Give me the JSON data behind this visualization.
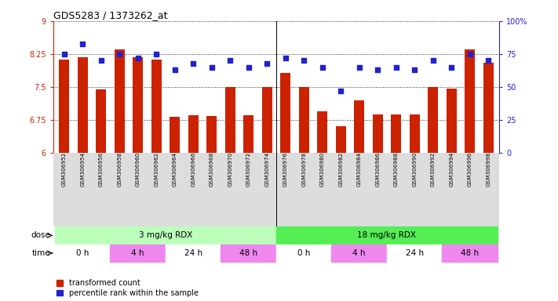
{
  "title": "GDS5283 / 1373262_at",
  "samples": [
    "GSM306952",
    "GSM306954",
    "GSM306956",
    "GSM306958",
    "GSM306960",
    "GSM306962",
    "GSM306964",
    "GSM306966",
    "GSM306968",
    "GSM306970",
    "GSM306972",
    "GSM306974",
    "GSM306976",
    "GSM306978",
    "GSM306980",
    "GSM306982",
    "GSM306984",
    "GSM306986",
    "GSM306988",
    "GSM306990",
    "GSM306992",
    "GSM306994",
    "GSM306996",
    "GSM306998"
  ],
  "transformed_count": [
    8.13,
    8.18,
    7.45,
    8.35,
    8.18,
    8.13,
    6.83,
    6.87,
    6.84,
    7.5,
    6.87,
    7.5,
    7.82,
    7.5,
    6.95,
    6.62,
    7.2,
    6.88,
    6.88,
    6.88,
    7.5,
    7.47,
    8.35,
    8.05
  ],
  "percentile_rank": [
    75,
    83,
    70,
    75,
    72,
    75,
    63,
    68,
    65,
    70,
    65,
    68,
    72,
    70,
    65,
    47,
    65,
    63,
    65,
    63,
    70,
    65,
    75,
    70
  ],
  "ylim_left": [
    6,
    9
  ],
  "ylim_right": [
    0,
    100
  ],
  "yticks_left": [
    6,
    6.75,
    7.5,
    8.25,
    9
  ],
  "yticks_right": [
    0,
    25,
    50,
    75,
    100
  ],
  "bar_color": "#cc2200",
  "scatter_color": "#2222cc",
  "dose_groups": [
    {
      "label": "3 mg/kg RDX",
      "start": 0,
      "end": 12,
      "color": "#bbffbb"
    },
    {
      "label": "18 mg/kg RDX",
      "start": 12,
      "end": 24,
      "color": "#55ee55"
    }
  ],
  "time_groups": [
    {
      "label": "0 h",
      "start": 0,
      "end": 3,
      "color": "#ffffff"
    },
    {
      "label": "4 h",
      "start": 3,
      "end": 6,
      "color": "#ee88ee"
    },
    {
      "label": "24 h",
      "start": 6,
      "end": 9,
      "color": "#ffffff"
    },
    {
      "label": "48 h",
      "start": 9,
      "end": 12,
      "color": "#ee88ee"
    },
    {
      "label": "0 h",
      "start": 12,
      "end": 15,
      "color": "#ffffff"
    },
    {
      "label": "4 h",
      "start": 15,
      "end": 18,
      "color": "#ee88ee"
    },
    {
      "label": "24 h",
      "start": 18,
      "end": 21,
      "color": "#ffffff"
    },
    {
      "label": "48 h",
      "start": 21,
      "end": 24,
      "color": "#ee88ee"
    }
  ],
  "dose_label": "dose",
  "time_label": "time",
  "legend_bar": "transformed count",
  "legend_scatter": "percentile rank within the sample",
  "bar_color_legend": "#cc2200",
  "scatter_color_legend": "#2222cc",
  "background_color": "#ffffff",
  "xticklabel_bg": "#dddddd"
}
